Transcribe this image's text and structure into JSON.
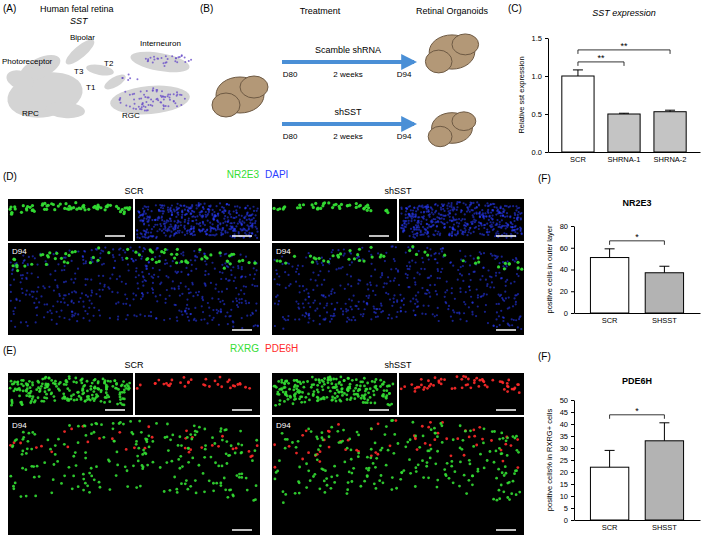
{
  "figure": {
    "panel_labels": [
      "(A)",
      "(B)",
      "(C)",
      "(D)",
      "(E)",
      "(F)",
      "(F)"
    ],
    "panel_a": {
      "title": "Human fetal retina",
      "gene": "SST",
      "clusters": [
        "Bipolar",
        "Photoreceptor",
        "T3",
        "T2",
        "T1",
        "Interneuron",
        "RPC",
        "RGC"
      ]
    },
    "panel_b": {
      "left_title": "Treatment",
      "right_title": "Retinal Organoids",
      "arms": [
        {
          "label": "Scamble shRNA",
          "start": "D80",
          "duration": "2 weeks",
          "end": "D94"
        },
        {
          "label": "shSST",
          "start": "D80",
          "duration": "2 weeks",
          "end": "D94"
        }
      ]
    },
    "panel_d": {
      "stains": [
        {
          "name": "NR2E3",
          "color": "#33dd33"
        },
        {
          "name": "DAPI",
          "color": "#2a3cff"
        }
      ],
      "groups": [
        "SCR",
        "shSST"
      ],
      "day": "D94"
    },
    "panel_e": {
      "stains": [
        {
          "name": "RXRG",
          "color": "#33dd33"
        },
        {
          "name": "PDE6H",
          "color": "#ff2a2a"
        }
      ],
      "groups": [
        "SCR",
        "shSST"
      ],
      "day": "D94"
    }
  },
  "chart_data": [
    {
      "type": "bar",
      "title": "SST expression",
      "y_label": "Relative sst expression",
      "categories": [
        "SCR",
        "SHRNA-1",
        "SHRNA-2"
      ],
      "values": [
        1.0,
        0.5,
        0.53
      ],
      "errors": [
        0.08,
        0.01,
        0.02
      ],
      "colors": [
        "#ffffff",
        "#c4c4c4",
        "#c4c4c4"
      ],
      "ylim": [
        0,
        1.5
      ],
      "yticks": [
        {
          "value": 0,
          "label": "0.0"
        },
        {
          "value": 0.5,
          "label": "0.5"
        },
        {
          "value": 1,
          "label": "1.0"
        },
        {
          "value": 1.5,
          "label": "1.5"
        }
      ],
      "comparisons": [
        {
          "pair": [
            "SCR",
            "SHRNA-1"
          ],
          "label": "**"
        },
        {
          "pair": [
            "SCR",
            "SHRNA-2"
          ],
          "label": "**"
        }
      ]
    },
    {
      "type": "bar",
      "title": "NR2E3",
      "y_label": "positive cells in outer layer",
      "categories": [
        "SCR",
        "SHSST"
      ],
      "values": [
        51,
        37
      ],
      "errors": [
        8,
        6
      ],
      "colors": [
        "#ffffff",
        "#b3b3b3"
      ],
      "ylim": [
        0,
        80
      ],
      "yticks": [
        0,
        20,
        40,
        60,
        80
      ],
      "comparisons": [
        {
          "pair": [
            "SCR",
            "SHSST"
          ],
          "label": "*"
        }
      ]
    },
    {
      "type": "bar",
      "title": "PDE6H",
      "y_label": "positive cells% in RXRG+ cells",
      "categories": [
        "SCR",
        "SHSST"
      ],
      "values": [
        22,
        33
      ],
      "errors": [
        7,
        7.5
      ],
      "colors": [
        "#ffffff",
        "#b3b3b3"
      ],
      "ylim": [
        0,
        50
      ],
      "yticks": [
        0,
        5,
        10,
        15,
        20,
        25,
        30,
        35,
        40,
        45,
        50
      ],
      "comparisons": [
        {
          "pair": [
            "SCR",
            "SHSST"
          ],
          "label": "*"
        }
      ]
    }
  ]
}
